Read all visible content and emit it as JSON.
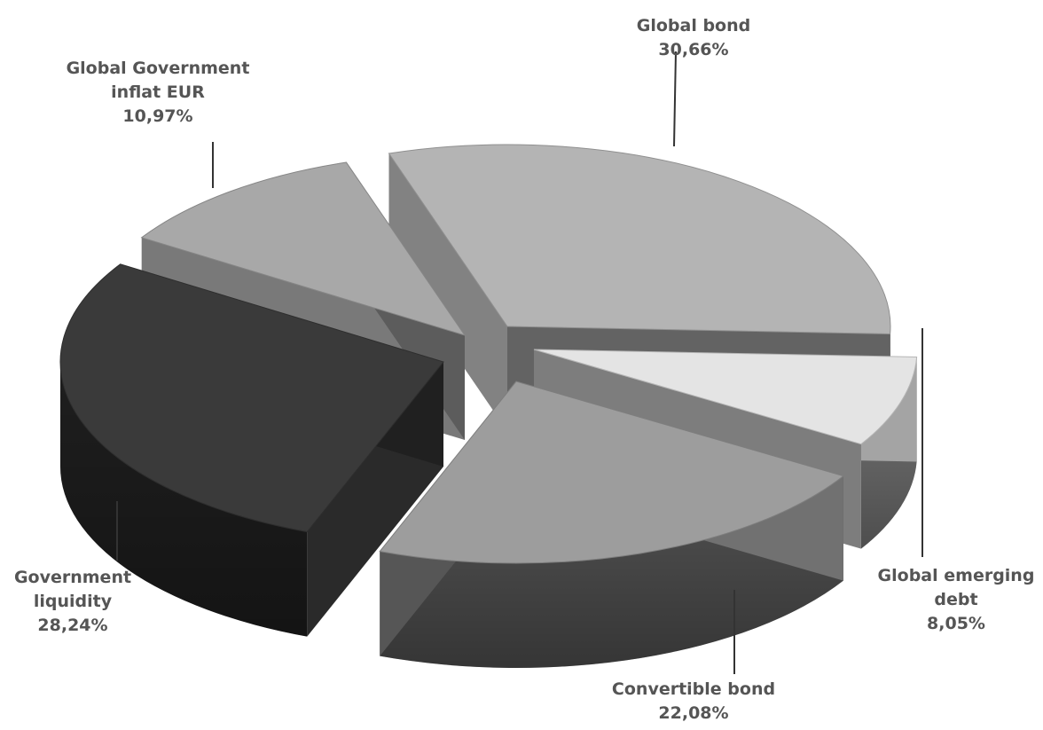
{
  "chart_data": {
    "type": "pie",
    "style": "3d-exploded",
    "slices": [
      {
        "name": "Global bond",
        "value": 30.66,
        "label_value": "30,66%",
        "color": "#b4b4b4"
      },
      {
        "name": "Global emerging debt",
        "value": 8.05,
        "label_value": "8,05%",
        "color": "#e4e4e4"
      },
      {
        "name": "Convertible bond",
        "value": 22.08,
        "label_value": "22,08%",
        "color": "#9d9d9d"
      },
      {
        "name": "Government liquidity",
        "value": 28.24,
        "label_value": "28,24%",
        "color": "#3a3a3a"
      },
      {
        "name": "Global Government inflat EUR",
        "value": 10.97,
        "label_value": "10,97%",
        "color": "#a8a8a8"
      }
    ],
    "labels": [
      {
        "lines": [
          "Global bond",
          "30,66%"
        ]
      },
      {
        "lines": [
          "Global emerging",
          "debt",
          "8,05%"
        ]
      },
      {
        "lines": [
          "Convertible bond",
          "22,08%"
        ]
      },
      {
        "lines": [
          "Government",
          "liquidity",
          "28,24%"
        ]
      },
      {
        "lines": [
          "Global Government",
          "inflat EUR",
          "10,97%"
        ]
      }
    ]
  }
}
